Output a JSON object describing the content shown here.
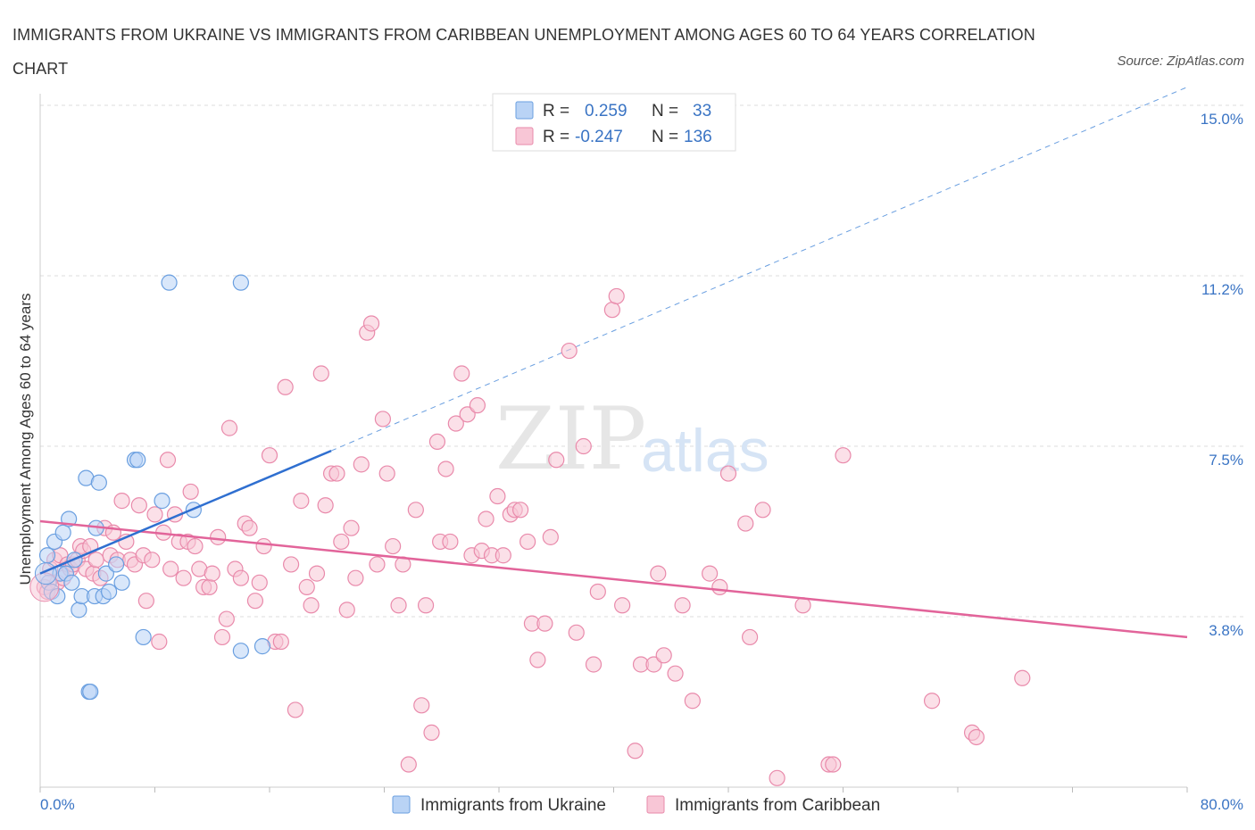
{
  "title": "IMMIGRANTS FROM UKRAINE VS IMMIGRANTS FROM CARIBBEAN UNEMPLOYMENT AMONG AGES 60 TO 64 YEARS CORRELATION CHART",
  "source": "Source: ZipAtlas.com",
  "watermark": {
    "zip": "ZIP",
    "atlas": "atlas"
  },
  "colors": {
    "ukraine_fill": "#b9d3f5",
    "ukraine_stroke": "#6a9fe0",
    "ukraine_line": "#2f6fd0",
    "caribbean_fill": "#f8c6d6",
    "caribbean_stroke": "#e98aab",
    "caribbean_line": "#e2649a",
    "tick_text": "#3a74c4",
    "grid": "#dddddd"
  },
  "legend": {
    "rows": [
      {
        "r_label": "R =",
        "r_value": "0.259",
        "n_label": "N =",
        "n_value": "33"
      },
      {
        "r_label": "R =",
        "r_value": "-0.247",
        "n_label": "N =",
        "n_value": "136"
      }
    ]
  },
  "chart_data": {
    "type": "scatter",
    "title": "IMMIGRANTS FROM UKRAINE VS IMMIGRANTS FROM CARIBBEAN UNEMPLOYMENT AMONG AGES 60 TO 64 YEARS CORRELATION CHART",
    "xlabel": "",
    "ylabel": "Unemployment Among Ages 60 to 64 years",
    "xlim": [
      0,
      80
    ],
    "ylim": [
      0,
      15
    ],
    "x_tick_labels": [
      "0.0%",
      "80.0%"
    ],
    "y_ticks": [
      3.8,
      7.5,
      11.2,
      15.0
    ],
    "y_tick_labels": [
      "3.8%",
      "7.5%",
      "11.2%",
      "15.0%"
    ],
    "legend_position": "top-center",
    "series": [
      {
        "name": "Immigrants from Ukraine",
        "R": 0.259,
        "N": 33,
        "trend": {
          "x0": 0,
          "y0": 4.7,
          "x1": 20.3,
          "y1": 7.4,
          "dashed_to_x": 80,
          "dashed_to_y": 15.4
        },
        "points": [
          [
            0.5,
            5.1
          ],
          [
            0.6,
            4.5
          ],
          [
            0.8,
            4.3
          ],
          [
            1.0,
            5.4
          ],
          [
            1.2,
            4.2
          ],
          [
            1.4,
            4.7
          ],
          [
            1.6,
            5.6
          ],
          [
            1.8,
            4.7
          ],
          [
            2.0,
            5.9
          ],
          [
            2.2,
            4.5
          ],
          [
            2.4,
            5.0
          ],
          [
            2.7,
            3.9
          ],
          [
            2.9,
            4.2
          ],
          [
            3.2,
            6.8
          ],
          [
            3.4,
            2.1
          ],
          [
            3.5,
            2.1
          ],
          [
            3.8,
            4.2
          ],
          [
            3.9,
            5.7
          ],
          [
            4.1,
            6.7
          ],
          [
            4.4,
            4.2
          ],
          [
            4.6,
            4.7
          ],
          [
            4.8,
            4.3
          ],
          [
            5.3,
            4.9
          ],
          [
            5.7,
            4.5
          ],
          [
            6.6,
            7.2
          ],
          [
            6.8,
            7.2
          ],
          [
            7.2,
            3.3
          ],
          [
            8.5,
            6.3
          ],
          [
            9.0,
            11.1
          ],
          [
            10.7,
            6.1
          ],
          [
            14.0,
            11.1
          ],
          [
            14.0,
            3.0
          ],
          [
            15.5,
            3.1
          ]
        ]
      },
      {
        "name": "Immigrants from Caribbean",
        "R": -0.247,
        "N": 136,
        "trend": {
          "x0": 0,
          "y0": 5.85,
          "x1": 80,
          "y1": 3.3
        },
        "points": [
          [
            0.3,
            4.4
          ],
          [
            0.5,
            4.3
          ],
          [
            0.7,
            4.8
          ],
          [
            1.0,
            5.0
          ],
          [
            1.2,
            4.5
          ],
          [
            1.4,
            5.1
          ],
          [
            1.6,
            4.6
          ],
          [
            1.9,
            4.9
          ],
          [
            2.1,
            4.8
          ],
          [
            2.3,
            4.9
          ],
          [
            2.6,
            5.0
          ],
          [
            2.8,
            5.3
          ],
          [
            3.0,
            5.2
          ],
          [
            3.2,
            4.8
          ],
          [
            3.5,
            5.3
          ],
          [
            3.7,
            4.7
          ],
          [
            3.9,
            5.0
          ],
          [
            4.2,
            4.6
          ],
          [
            4.5,
            5.7
          ],
          [
            4.9,
            5.1
          ],
          [
            5.1,
            5.6
          ],
          [
            5.4,
            5.0
          ],
          [
            5.7,
            6.3
          ],
          [
            6.0,
            5.4
          ],
          [
            6.3,
            5.0
          ],
          [
            6.6,
            4.9
          ],
          [
            6.9,
            6.2
          ],
          [
            7.2,
            5.1
          ],
          [
            7.4,
            4.1
          ],
          [
            7.8,
            5.0
          ],
          [
            8.0,
            6.0
          ],
          [
            8.3,
            3.2
          ],
          [
            8.6,
            5.6
          ],
          [
            8.9,
            7.2
          ],
          [
            9.1,
            4.8
          ],
          [
            9.4,
            6.0
          ],
          [
            9.7,
            5.4
          ],
          [
            10.0,
            4.6
          ],
          [
            10.3,
            5.4
          ],
          [
            10.5,
            6.5
          ],
          [
            10.8,
            5.3
          ],
          [
            11.1,
            4.8
          ],
          [
            11.4,
            4.4
          ],
          [
            11.8,
            4.4
          ],
          [
            12.0,
            4.7
          ],
          [
            12.4,
            5.5
          ],
          [
            12.7,
            3.3
          ],
          [
            13.0,
            3.7
          ],
          [
            13.2,
            7.9
          ],
          [
            13.6,
            4.8
          ],
          [
            14.0,
            4.6
          ],
          [
            14.3,
            5.8
          ],
          [
            14.6,
            5.7
          ],
          [
            15.0,
            4.1
          ],
          [
            15.3,
            4.5
          ],
          [
            15.6,
            5.3
          ],
          [
            16.0,
            7.3
          ],
          [
            16.4,
            3.2
          ],
          [
            16.8,
            3.2
          ],
          [
            17.1,
            8.8
          ],
          [
            17.5,
            4.9
          ],
          [
            17.8,
            1.7
          ],
          [
            18.2,
            6.3
          ],
          [
            18.6,
            4.4
          ],
          [
            18.9,
            4.0
          ],
          [
            19.3,
            4.7
          ],
          [
            19.6,
            9.1
          ],
          [
            19.9,
            6.2
          ],
          [
            20.3,
            6.9
          ],
          [
            20.7,
            6.9
          ],
          [
            21.0,
            5.4
          ],
          [
            21.4,
            3.9
          ],
          [
            21.7,
            5.7
          ],
          [
            22.0,
            4.6
          ],
          [
            22.4,
            7.1
          ],
          [
            22.8,
            10.0
          ],
          [
            23.1,
            10.2
          ],
          [
            23.5,
            4.9
          ],
          [
            23.9,
            8.1
          ],
          [
            24.2,
            6.9
          ],
          [
            24.6,
            5.3
          ],
          [
            25.0,
            4.0
          ],
          [
            25.3,
            4.9
          ],
          [
            25.7,
            0.5
          ],
          [
            26.2,
            6.1
          ],
          [
            26.6,
            1.8
          ],
          [
            26.9,
            4.0
          ],
          [
            27.3,
            1.2
          ],
          [
            27.7,
            7.6
          ],
          [
            27.9,
            5.4
          ],
          [
            28.3,
            7.0
          ],
          [
            28.6,
            5.4
          ],
          [
            29.0,
            8.0
          ],
          [
            29.4,
            9.1
          ],
          [
            29.8,
            8.2
          ],
          [
            30.1,
            5.1
          ],
          [
            30.5,
            8.4
          ],
          [
            30.8,
            5.2
          ],
          [
            31.1,
            5.9
          ],
          [
            31.5,
            5.1
          ],
          [
            31.9,
            6.4
          ],
          [
            32.3,
            5.1
          ],
          [
            32.8,
            6.0
          ],
          [
            33.1,
            6.1
          ],
          [
            33.5,
            6.1
          ],
          [
            34.0,
            5.4
          ],
          [
            34.3,
            3.6
          ],
          [
            34.7,
            2.8
          ],
          [
            35.2,
            3.6
          ],
          [
            35.6,
            5.5
          ],
          [
            36.0,
            7.2
          ],
          [
            36.9,
            9.6
          ],
          [
            37.4,
            3.4
          ],
          [
            37.9,
            7.5
          ],
          [
            38.6,
            2.7
          ],
          [
            38.9,
            4.3
          ],
          [
            39.9,
            10.5
          ],
          [
            40.2,
            10.8
          ],
          [
            40.6,
            4.0
          ],
          [
            41.5,
            0.8
          ],
          [
            41.9,
            2.7
          ],
          [
            42.8,
            2.7
          ],
          [
            43.1,
            4.7
          ],
          [
            43.5,
            2.9
          ],
          [
            44.3,
            2.5
          ],
          [
            44.8,
            4.0
          ],
          [
            45.5,
            1.9
          ],
          [
            46.7,
            4.7
          ],
          [
            47.4,
            4.4
          ],
          [
            48.0,
            6.9
          ],
          [
            49.2,
            5.8
          ],
          [
            49.5,
            3.3
          ],
          [
            50.4,
            6.1
          ],
          [
            51.4,
            0.2
          ],
          [
            53.2,
            4.0
          ],
          [
            55.0,
            0.5
          ],
          [
            55.3,
            0.5
          ],
          [
            56.0,
            7.3
          ],
          [
            62.2,
            1.9
          ],
          [
            65.0,
            1.2
          ],
          [
            65.3,
            1.1
          ],
          [
            68.5,
            2.4
          ]
        ]
      }
    ]
  }
}
